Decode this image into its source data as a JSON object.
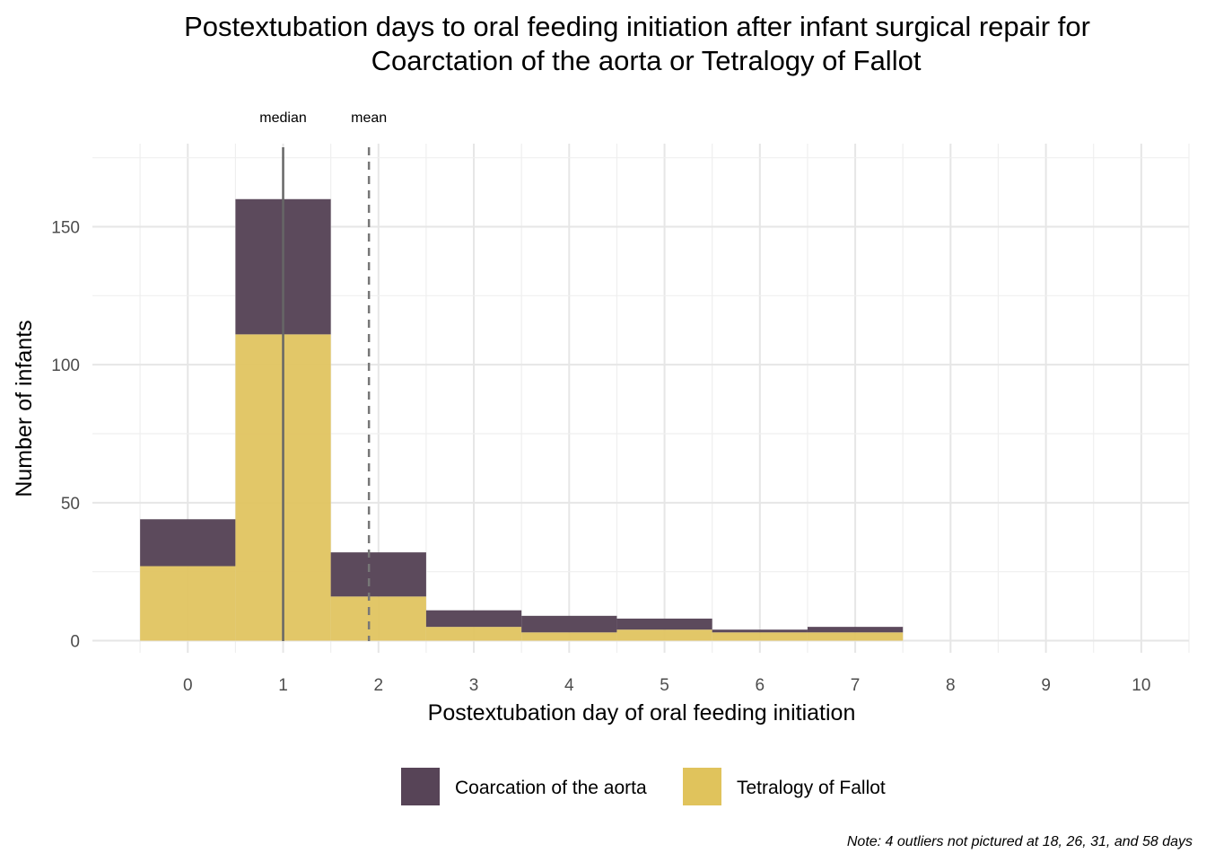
{
  "chart_data": {
    "type": "bar",
    "stacked": true,
    "title": [
      "Postextubation days to oral feeding initiation after infant surgical repair for",
      "Coarctation of the aorta or Tetralogy of Fallot"
    ],
    "xlabel": "Postextubation day of oral feeding initiation",
    "ylabel": "Number of infants",
    "categories": [
      0,
      1,
      2,
      3,
      4,
      5,
      6,
      7
    ],
    "x_ticks": [
      0,
      1,
      2,
      3,
      4,
      5,
      6,
      7,
      8,
      9,
      10
    ],
    "y_ticks": [
      0,
      50,
      100,
      150
    ],
    "xlim": [
      -1,
      10.5
    ],
    "ylim": [
      0,
      175
    ],
    "series": [
      {
        "name": "Tetralogy of Fallot",
        "color": "#e0c35c",
        "values": [
          27,
          111,
          16,
          5,
          3,
          4,
          3,
          3
        ]
      },
      {
        "name": "Coarcation of the aorta",
        "color": "#574457",
        "values": [
          17,
          49,
          16,
          6,
          6,
          4,
          1,
          2
        ]
      }
    ],
    "reference_lines": [
      {
        "label": "median",
        "x": 1,
        "style": "solid"
      },
      {
        "label": "mean",
        "x": 1.9,
        "style": "dashed"
      }
    ],
    "legend": {
      "position": "bottom",
      "order": [
        "Coarcation of the aorta",
        "Tetralogy of Fallot"
      ]
    },
    "caption": "Note: 4 outliers not pictured at 18, 26, 31, and 58 days",
    "grid": true
  }
}
